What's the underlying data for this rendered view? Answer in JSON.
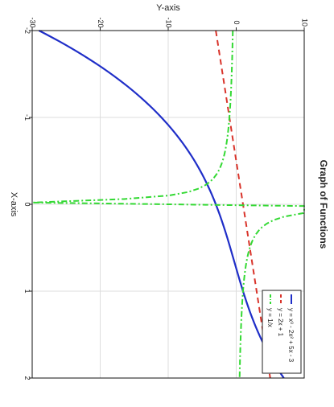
{
  "chart_data": {
    "type": "line",
    "title": "Graph of Functions",
    "xlabel": "X-axis",
    "ylabel": "Y-axis",
    "orientation": "rotated 90 degrees clockwise",
    "xlim": [
      -2,
      2
    ],
    "ylim": [
      -30,
      10
    ],
    "x_ticks": [
      -2,
      -1,
      0,
      1,
      2
    ],
    "y_ticks": [
      -30,
      -20,
      -10,
      0,
      10
    ],
    "grid": true,
    "legend_position": "bottom-right",
    "series": [
      {
        "name": "y = x³ - 2x² + 5x - 3",
        "expression": "x^3 - 2x^2 + 5x - 3",
        "color": "#1f2ec8",
        "line_style": "solid"
      },
      {
        "name": "y = 2x + 1",
        "expression": "2x + 1",
        "color": "#d9342b",
        "line_style": "dashed"
      },
      {
        "name": "y = 1/x",
        "expression": "1/x",
        "color": "#34d934",
        "line_style": "dash-dot",
        "clipped_to_ylim": true
      }
    ]
  }
}
